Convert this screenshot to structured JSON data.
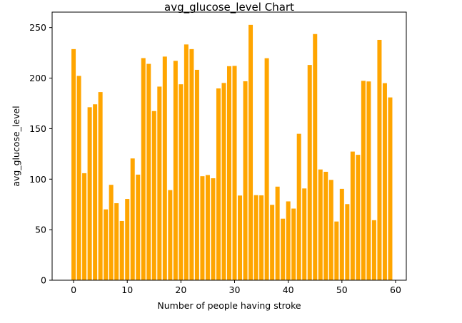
{
  "chart_data": {
    "type": "bar",
    "title": "avg_glucose_level Chart",
    "xlabel": "Number of people having stroke",
    "ylabel": "avg_glucose_level",
    "x": [
      0,
      1,
      2,
      3,
      4,
      5,
      6,
      7,
      8,
      9,
      10,
      11,
      12,
      13,
      14,
      15,
      16,
      17,
      18,
      19,
      20,
      21,
      22,
      23,
      24,
      25,
      26,
      27,
      28,
      29,
      30,
      31,
      32,
      33,
      34,
      35,
      36,
      37,
      38,
      39,
      40,
      41,
      42,
      43,
      44,
      45,
      46,
      47,
      48,
      49,
      50,
      51,
      52,
      53,
      54,
      55,
      56,
      57,
      58,
      59
    ],
    "values": [
      228.7,
      202.2,
      105.9,
      171.2,
      174.1,
      186.2,
      70.1,
      94.4,
      76.2,
      58.6,
      80.4,
      120.5,
      104.5,
      219.8,
      214.1,
      167.4,
      191.6,
      221.3,
      89.2,
      217.1,
      193.9,
      233.3,
      228.7,
      208.2,
      102.9,
      104.1,
      100.9,
      189.8,
      195.2,
      211.8,
      212.1,
      83.8,
      196.9,
      252.7,
      84.2,
      84.0,
      219.7,
      74.6,
      92.6,
      60.9,
      78.0,
      70.9,
      144.9,
      90.8,
      213.0,
      243.6,
      109.6,
      107.3,
      99.3,
      58.1,
      90.4,
      75.3,
      127.3,
      124.1,
      197.3,
      196.7,
      59.4,
      237.8,
      195.0,
      180.9
    ],
    "color": "#ffa500",
    "xlim": [
      -4.0,
      62.0
    ],
    "ylim": [
      0,
      265.3
    ],
    "xticks": [
      0,
      10,
      20,
      30,
      40,
      50,
      60
    ],
    "yticks": [
      0,
      50,
      100,
      150,
      200,
      250
    ],
    "grid": false,
    "legend": "none"
  }
}
